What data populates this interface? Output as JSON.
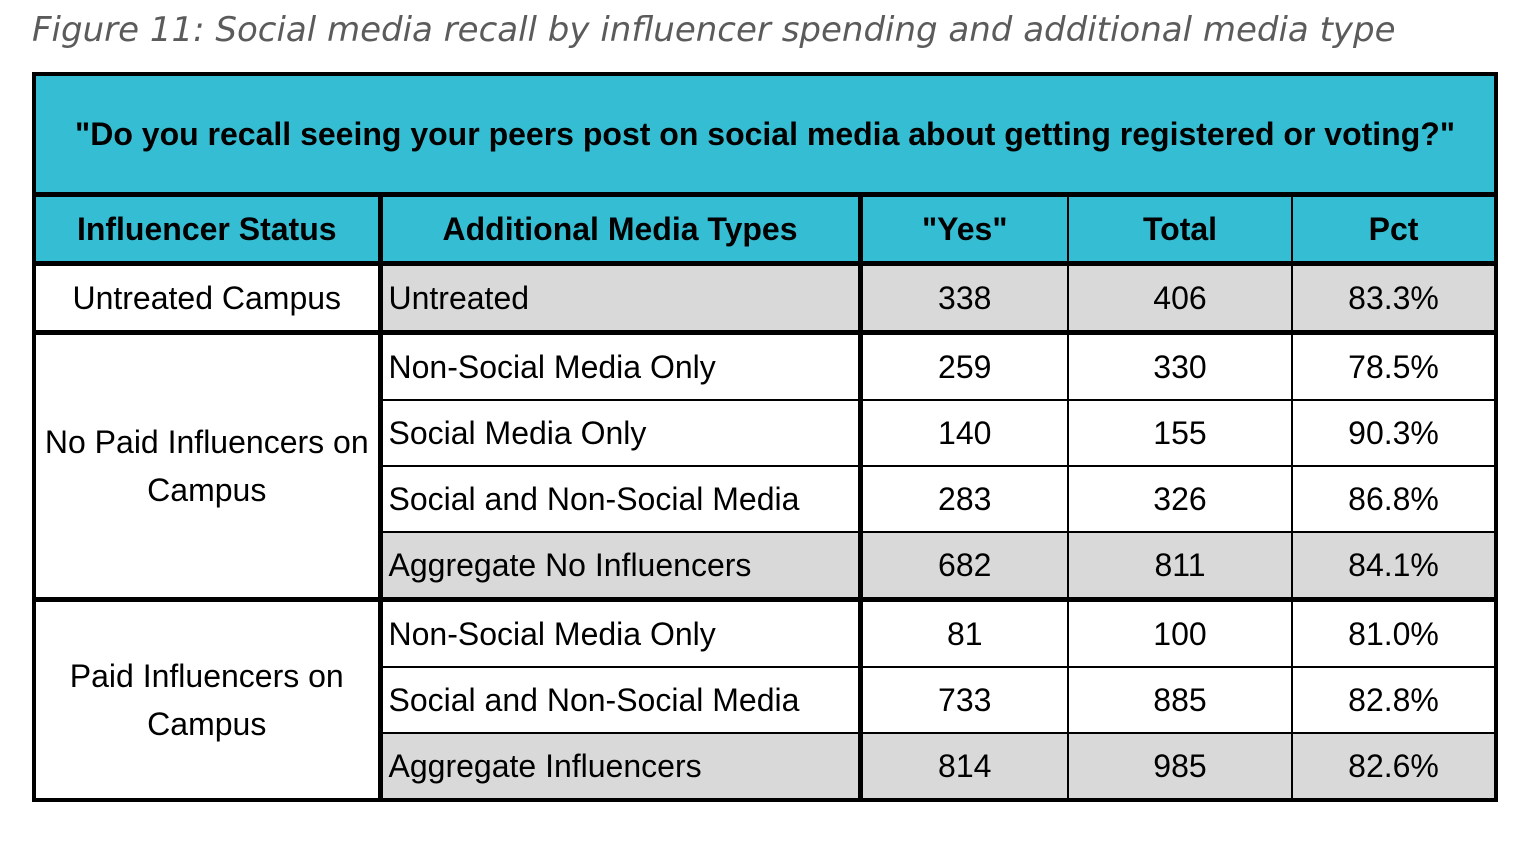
{
  "figure_caption": "Figure 11: Social media recall by influencer spending and additional media type",
  "table": {
    "question": "\"Do you recall seeing your peers post on social media about getting registered or voting?\"",
    "columns": [
      "Influencer Status",
      "Additional Media Types",
      "\"Yes\"",
      "Total",
      "Pct"
    ],
    "groups": [
      {
        "status": "Untreated Campus",
        "rows": [
          {
            "media": "Untreated",
            "yes": "338",
            "total": "406",
            "pct": "83.3%",
            "shade": "gray"
          }
        ]
      },
      {
        "status": "No Paid Influencers on Campus",
        "rows": [
          {
            "media": "Non-Social Media Only",
            "yes": "259",
            "total": "330",
            "pct": "78.5%",
            "shade": "white"
          },
          {
            "media": "Social Media Only",
            "yes": "140",
            "total": "155",
            "pct": "90.3%",
            "shade": "white"
          },
          {
            "media": "Social and Non-Social Media",
            "yes": "283",
            "total": "326",
            "pct": "86.8%",
            "shade": "white"
          },
          {
            "media": "Aggregate No Influencers",
            "yes": "682",
            "total": "811",
            "pct": "84.1%",
            "shade": "gray"
          }
        ]
      },
      {
        "status": "Paid Influencers on Campus",
        "rows": [
          {
            "media": "Non-Social Media Only",
            "yes": "81",
            "total": "100",
            "pct": "81.0%",
            "shade": "white"
          },
          {
            "media": "Social and Non-Social Media",
            "yes": "733",
            "total": "885",
            "pct": "82.8%",
            "shade": "white"
          },
          {
            "media": "Aggregate Influencers",
            "yes": "814",
            "total": "985",
            "pct": "82.6%",
            "shade": "gray"
          }
        ]
      }
    ]
  },
  "colors": {
    "header_bg": "#35bed3",
    "shaded_row_bg": "#d9d9d9",
    "caption_text": "#5b5b5b"
  }
}
